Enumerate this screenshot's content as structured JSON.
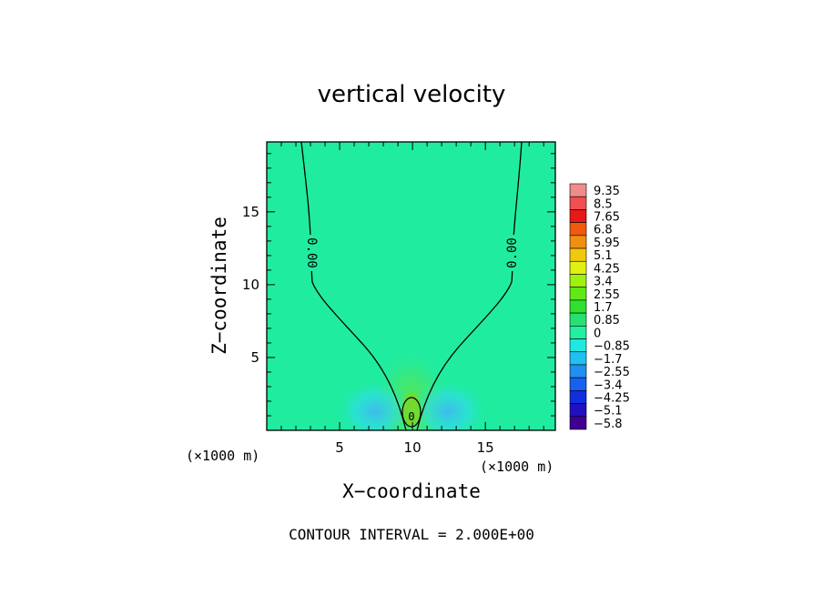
{
  "chart_data": {
    "type": "heatmap",
    "title": "vertical velocity",
    "xlabel": "X−coordinate",
    "ylabel": "Z−coordinate",
    "x_unit": "(×1000 m)",
    "y_unit": "(×1000 m)",
    "xlim": [
      0,
      19.8
    ],
    "ylim": [
      0,
      19.8
    ],
    "x_ticks": [
      5,
      10,
      15
    ],
    "y_ticks": [
      5,
      10,
      15
    ],
    "colorbar": {
      "labels": [
        "9.35",
        "8.5",
        "7.65",
        "6.8",
        "5.95",
        "5.1",
        "4.25",
        "3.4",
        "2.55",
        "1.7",
        "0.85",
        "0",
        "−0.85",
        "−1.7",
        "−2.55",
        "−3.4",
        "−4.25",
        "−5.1",
        "−5.8"
      ],
      "colors": [
        "#f08c8c",
        "#f05050",
        "#e81818",
        "#f05a10",
        "#f09010",
        "#f0c810",
        "#e0f010",
        "#a0f010",
        "#60e818",
        "#30e030",
        "#28e070",
        "#20f0a0",
        "#20e8e0",
        "#20c0f0",
        "#2090f0",
        "#1860f0",
        "#1030e0",
        "#2010c0",
        "#400090"
      ]
    },
    "contour_interval_text": "CONTOUR INTERVAL = 2.000E+00",
    "contour_labels": [
      "0.00",
      "0.00",
      "0"
    ],
    "background_value": 0.2
  },
  "colors": {
    "background_field": "#20eca0",
    "frame": "#000000"
  }
}
